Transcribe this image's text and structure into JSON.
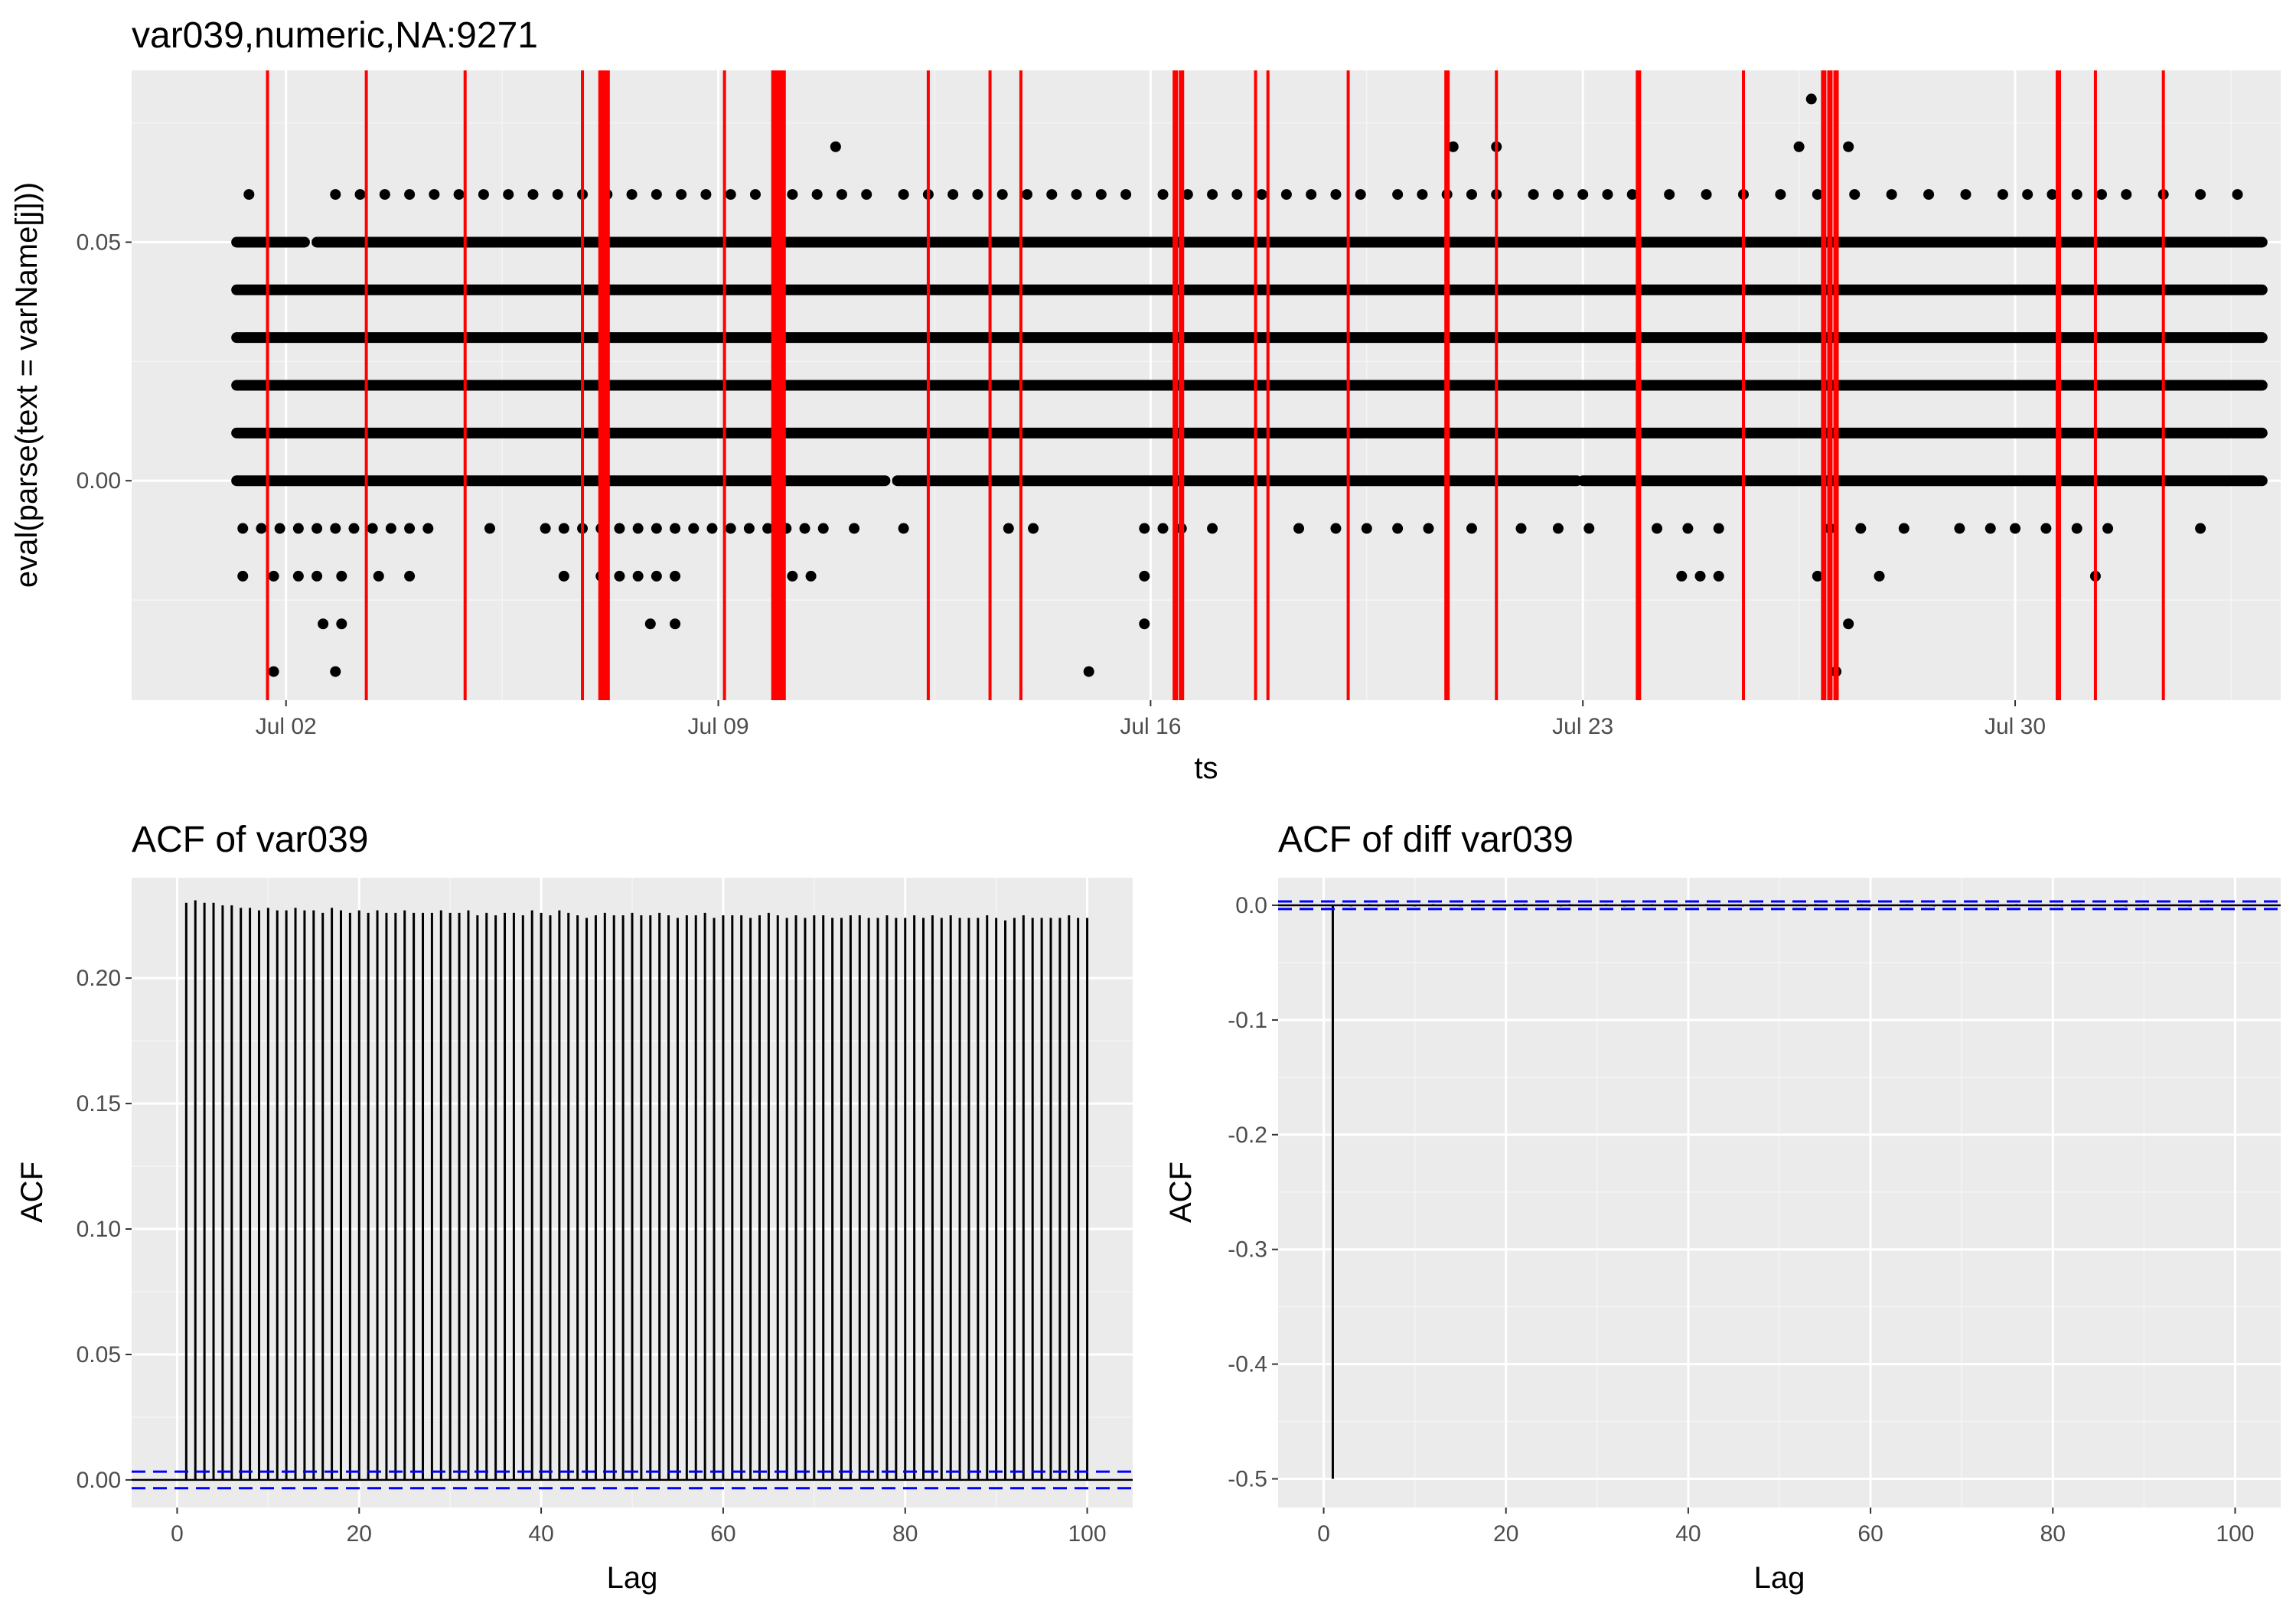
{
  "chart_data": [
    {
      "type": "scatter",
      "title": "var039,numeric,NA:9271",
      "xlabel": "ts",
      "ylabel": "eval(parse(text = varName[j]))",
      "x_ticks": [
        "Jul 02",
        "Jul 09",
        "Jul 16",
        "Jul 23",
        "Jul 30"
      ],
      "x_tick_days": [
        2,
        9,
        16,
        23,
        30
      ],
      "xlim_days": [
        -0.5,
        34.3
      ],
      "y_ticks": [
        "0.00",
        "0.05"
      ],
      "y_tick_values": [
        0.0,
        0.05
      ],
      "ylim": [
        -0.046,
        0.086
      ],
      "grid": true,
      "point_color": "#000000",
      "vline_color": "#ff0000",
      "dense_rows": [
        {
          "y": 0.05,
          "segments": [
            [
              1.2,
              2.3
            ],
            [
              2.5,
              34.0
            ]
          ]
        },
        {
          "y": 0.04,
          "segments": [
            [
              1.2,
              34.0
            ]
          ]
        },
        {
          "y": 0.03,
          "segments": [
            [
              1.2,
              34.0
            ]
          ]
        },
        {
          "y": 0.02,
          "segments": [
            [
              1.2,
              34.0
            ]
          ]
        },
        {
          "y": 0.01,
          "segments": [
            [
              1.2,
              34.0
            ]
          ]
        },
        {
          "y": 0.0,
          "segments": [
            [
              1.2,
              11.7
            ],
            [
              11.9,
              22.9
            ],
            [
              23.0,
              34.0
            ]
          ]
        }
      ],
      "scattered_points": [
        {
          "y": 0.06,
          "x": [
            1.4,
            2.8,
            3.2,
            3.6,
            4.0,
            4.4,
            4.8,
            5.2,
            5.6,
            6.0,
            6.4,
            6.8,
            7.2,
            7.6,
            8.0,
            8.4,
            8.8,
            9.2,
            9.6,
            10.2,
            10.6,
            11.0,
            11.4,
            12.0,
            12.4,
            12.8,
            13.2,
            13.6,
            14.0,
            14.4,
            14.8,
            15.2,
            15.6,
            16.2,
            16.6,
            17.0,
            17.4,
            17.8,
            18.2,
            18.6,
            19.0,
            19.4,
            20.0,
            20.4,
            20.8,
            21.2,
            21.6,
            22.2,
            22.6,
            23.0,
            23.4,
            23.8,
            24.4,
            25.0,
            25.6,
            26.2,
            26.8,
            27.4,
            28.0,
            28.6,
            29.2,
            29.8,
            30.2,
            30.6,
            31.0,
            31.4,
            31.8,
            32.4,
            33.0,
            33.6
          ]
        },
        {
          "y": 0.07,
          "x": [
            10.9,
            20.9,
            21.6,
            26.5,
            27.3
          ]
        },
        {
          "y": 0.08,
          "x": [
            26.7
          ]
        },
        {
          "y": -0.01,
          "x": [
            1.3,
            1.6,
            1.9,
            2.2,
            2.5,
            2.8,
            3.1,
            3.4,
            3.7,
            4.0,
            4.3,
            5.3,
            6.2,
            6.5,
            6.8,
            7.1,
            7.4,
            7.7,
            8.0,
            8.3,
            8.6,
            8.9,
            9.2,
            9.5,
            9.8,
            10.1,
            10.4,
            10.7,
            11.2,
            12.0,
            13.7,
            14.1,
            15.9,
            16.2,
            16.5,
            17.0,
            18.4,
            19.0,
            19.5,
            20.0,
            20.5,
            21.2,
            22.0,
            22.6,
            23.1,
            24.2,
            24.7,
            25.2,
            27.0,
            27.5,
            28.2,
            29.1,
            29.6,
            30.0,
            30.5,
            31.0,
            31.5,
            33.0
          ]
        },
        {
          "y": -0.02,
          "x": [
            1.3,
            1.8,
            2.2,
            2.5,
            2.9,
            3.5,
            4.0,
            6.5,
            7.1,
            7.4,
            7.7,
            8.0,
            8.3,
            10.2,
            10.5,
            15.9,
            24.6,
            24.9,
            25.2,
            26.8,
            27.8,
            31.3
          ]
        },
        {
          "y": -0.03,
          "x": [
            2.6,
            2.9,
            7.9,
            8.3,
            15.9,
            27.3
          ]
        },
        {
          "y": -0.04,
          "x": [
            1.8,
            2.8,
            15.0,
            27.1
          ]
        }
      ],
      "vlines_days": [
        1.7,
        3.3,
        4.9,
        6.8,
        7.1,
        7.15,
        7.2,
        9.1,
        9.9,
        9.95,
        10.0,
        10.05,
        12.4,
        13.4,
        13.9,
        16.4,
        16.5,
        17.7,
        17.9,
        19.2,
        20.8,
        21.6,
        23.9,
        25.6,
        26.9,
        27.0,
        27.1,
        30.7,
        31.3,
        32.4
      ],
      "vlines_thick": [
        false,
        false,
        false,
        false,
        true,
        true,
        true,
        false,
        true,
        true,
        true,
        true,
        false,
        false,
        false,
        true,
        true,
        false,
        false,
        false,
        true,
        false,
        true,
        false,
        true,
        true,
        true,
        true,
        false,
        false
      ]
    },
    {
      "type": "bar",
      "title": "ACF of var039",
      "xlabel": "Lag",
      "ylabel": "ACF",
      "x_ticks": [
        "0",
        "20",
        "40",
        "60",
        "80",
        "100"
      ],
      "x_tick_values": [
        0,
        20,
        40,
        60,
        80,
        100
      ],
      "xlim": [
        -5,
        105
      ],
      "y_ticks": [
        "0.00",
        "0.05",
        "0.10",
        "0.15",
        "0.20"
      ],
      "y_tick_values": [
        0.0,
        0.05,
        0.1,
        0.15,
        0.2
      ],
      "ylim": [
        -0.011,
        0.24
      ],
      "lags": [
        1,
        100
      ],
      "values": [
        0.23,
        0.231,
        0.23,
        0.23,
        0.229,
        0.229,
        0.228,
        0.228,
        0.227,
        0.228,
        0.227,
        0.227,
        0.228,
        0.227,
        0.227,
        0.226,
        0.228,
        0.227,
        0.226,
        0.227,
        0.226,
        0.227,
        0.226,
        0.226,
        0.227,
        0.226,
        0.226,
        0.226,
        0.227,
        0.226,
        0.226,
        0.227,
        0.225,
        0.226,
        0.225,
        0.226,
        0.226,
        0.225,
        0.227,
        0.226,
        0.225,
        0.227,
        0.226,
        0.225,
        0.224,
        0.225,
        0.226,
        0.225,
        0.225,
        0.226,
        0.225,
        0.225,
        0.226,
        0.225,
        0.224,
        0.225,
        0.225,
        0.226,
        0.224,
        0.225,
        0.225,
        0.225,
        0.224,
        0.225,
        0.226,
        0.225,
        0.224,
        0.225,
        0.224,
        0.225,
        0.225,
        0.224,
        0.224,
        0.225,
        0.225,
        0.224,
        0.224,
        0.225,
        0.224,
        0.224,
        0.225,
        0.224,
        0.225,
        0.224,
        0.225,
        0.224,
        0.224,
        0.224,
        0.225,
        0.224,
        0.223,
        0.224,
        0.225,
        0.224,
        0.224,
        0.224,
        0.224,
        0.225,
        0.224,
        0.224
      ],
      "conf_bound": 0.0033,
      "grid": true,
      "bar_color": "#000000",
      "ci_color": "#0000ff"
    },
    {
      "type": "bar",
      "title": "ACF of diff var039",
      "xlabel": "Lag",
      "ylabel": "ACF",
      "x_ticks": [
        "0",
        "20",
        "40",
        "60",
        "80",
        "100"
      ],
      "x_tick_values": [
        0,
        20,
        40,
        60,
        80,
        100
      ],
      "xlim": [
        -5,
        105
      ],
      "y_ticks": [
        "0.0",
        "-0.1",
        "-0.2",
        "-0.3",
        "-0.4",
        "-0.5"
      ],
      "y_tick_values": [
        0.0,
        -0.1,
        -0.2,
        -0.3,
        -0.4,
        -0.5
      ],
      "ylim": [
        -0.525,
        0.024
      ],
      "lags": [
        1,
        100
      ],
      "values": [
        -0.5,
        0.001,
        -0.001,
        0.0,
        0.001,
        -0.001,
        0.0,
        0.001,
        0.0,
        -0.001,
        0.0,
        0.001,
        0.0,
        0.0,
        -0.001,
        0.0,
        0.001,
        0.0,
        0.0,
        -0.001,
        0.0,
        0.001,
        0.0,
        0.0,
        0.0,
        -0.001,
        0.001,
        0.0,
        0.0,
        0.0,
        0.001,
        0.0,
        -0.001,
        0.0,
        0.0,
        0.001,
        0.0,
        0.0,
        -0.001,
        0.0,
        0.0,
        0.001,
        0.0,
        0.0,
        0.0,
        -0.001,
        0.0,
        0.001,
        0.0,
        0.0,
        0.0,
        0.0,
        -0.001,
        0.001,
        0.0,
        0.0,
        0.0,
        0.0,
        0.001,
        -0.001,
        0.0,
        0.0,
        0.0,
        0.001,
        0.0,
        0.0,
        -0.001,
        0.0,
        0.0,
        0.001,
        0.0,
        0.0,
        0.0,
        -0.001,
        0.0,
        0.001,
        0.0,
        0.0,
        0.0,
        0.0,
        -0.001,
        0.0,
        0.001,
        0.0,
        0.0,
        0.0,
        0.0,
        -0.001,
        0.0,
        0.001,
        0.0,
        0.0,
        0.0,
        0.0,
        -0.001,
        0.0,
        0.001,
        0.0,
        0.0,
        0.0
      ],
      "conf_bound": 0.0033,
      "grid": true,
      "bar_color": "#000000",
      "ci_color": "#0000ff"
    }
  ]
}
